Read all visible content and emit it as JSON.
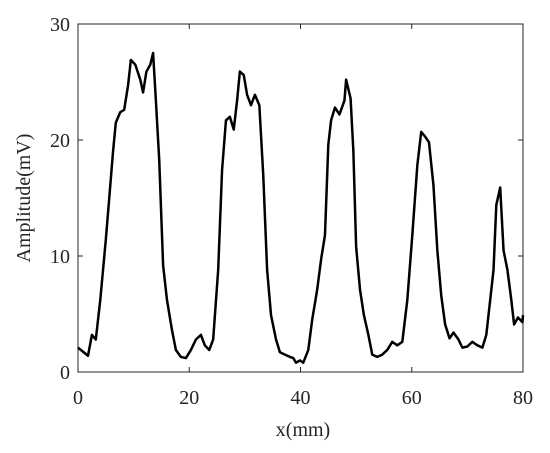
{
  "chart_data": {
    "type": "line",
    "xlabel": "x(mm)",
    "ylabel": "Amplitude(mV)",
    "x": [
      0,
      1.8,
      2.5,
      3.2,
      4,
      5,
      6.3,
      6.8,
      7.6,
      8.3,
      9,
      9.5,
      10.3,
      11.2,
      11.7,
      12.3,
      13,
      13.5,
      14,
      14.6,
      15.3,
      16,
      16.9,
      17.6,
      18.5,
      19.4,
      20.3,
      21.2,
      22.1,
      22.8,
      23.6,
      24.3,
      25.2,
      25.9,
      26.6,
      27.3,
      28,
      28.6,
      29.1,
      29.8,
      30.4,
      31.1,
      31.8,
      32.6,
      33.3,
      34,
      34.7,
      35.6,
      36.3,
      37.2,
      38.1,
      38.7,
      39.2,
      39.9,
      40.5,
      41.4,
      42.1,
      43,
      43.7,
      44.4,
      45,
      45.5,
      46.2,
      47,
      47.9,
      48.2,
      49,
      49.5,
      50,
      50.7,
      51.4,
      52.2,
      52.9,
      53.8,
      54.7,
      55.6,
      56.5,
      57.4,
      58.3,
      59.2,
      60.1,
      61,
      61.7,
      62.4,
      63.1,
      63.9,
      64.6,
      65.3,
      66,
      66.8,
      67.5,
      68.4,
      69.1,
      70,
      70.9,
      71.8,
      72.7,
      73.4,
      74.1,
      74.7,
      75.2,
      75.9,
      76.5,
      77.2,
      77.9,
      78.4,
      79.1,
      79.9,
      80
    ],
    "series": [
      {
        "color": "#000000",
        "values": [
          2.1,
          1.4,
          3.2,
          2.8,
          6.2,
          11.4,
          19,
          21.5,
          22.4,
          22.6,
          24.7,
          26.9,
          26.5,
          25.2,
          24.1,
          25.9,
          26.5,
          27.5,
          23.4,
          18.3,
          9.2,
          6.2,
          3.6,
          1.9,
          1.3,
          1.2,
          1.9,
          2.8,
          3.2,
          2.3,
          1.9,
          2.8,
          8.8,
          17.4,
          21.7,
          22,
          20.9,
          23.4,
          25.9,
          25.6,
          23.9,
          23,
          23.9,
          23,
          17,
          8.8,
          4.9,
          2.8,
          1.7,
          1.5,
          1.3,
          1.2,
          0.8,
          1,
          0.8,
          1.9,
          4.5,
          7.1,
          9.7,
          11.8,
          19.6,
          21.7,
          22.8,
          22.2,
          23.4,
          25.2,
          23.6,
          19.1,
          10.8,
          7.1,
          4.9,
          3.2,
          1.5,
          1.3,
          1.5,
          1.9,
          2.6,
          2.3,
          2.6,
          6.2,
          11.8,
          17.8,
          20.7,
          20.3,
          19.8,
          16.1,
          10.5,
          6.6,
          4.1,
          2.9,
          3.4,
          2.8,
          2.1,
          2.2,
          2.6,
          2.3,
          2.1,
          3.2,
          6.2,
          8.8,
          14.4,
          15.9,
          10.5,
          8.8,
          6.2,
          4.1,
          4.7,
          4.3,
          4.9
        ]
      }
    ],
    "xlim": [
      0,
      80
    ],
    "ylim": [
      0,
      30
    ],
    "xticks": [
      0,
      20,
      40,
      60,
      80
    ],
    "yticks": [
      0,
      10,
      20,
      30
    ]
  }
}
